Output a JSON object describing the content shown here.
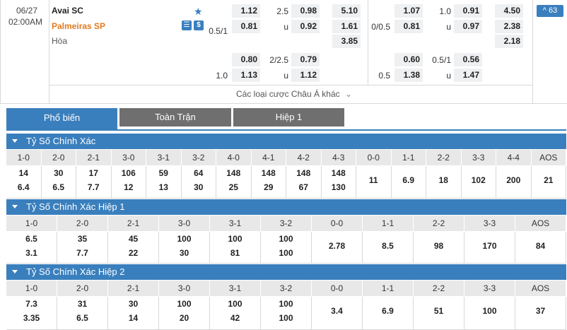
{
  "match": {
    "date": "06/27",
    "time": "02:00AM",
    "home": "Avai SC",
    "away": "Palmeiras SP",
    "draw": "Hòa",
    "more_count": "63",
    "more_label": "Các loại cược Châu Á khác",
    "home_color": "#222222",
    "away_color": "#e07b1f"
  },
  "odds": {
    "ft_hdp": [
      [
        "",
        "1.12"
      ],
      [
        "0.5/1",
        "0.81"
      ]
    ],
    "ft_ou": [
      [
        "2.5",
        "0.98"
      ],
      [
        "u",
        "0.92"
      ]
    ],
    "ft_1x2": [
      "5.10",
      "1.61",
      "3.85"
    ],
    "ht_hdp": [
      [
        "",
        "1.07"
      ],
      [
        "0/0.5",
        "0.81"
      ]
    ],
    "ht_ou": [
      [
        "1.0",
        "0.91"
      ],
      [
        "u",
        "0.97"
      ]
    ],
    "ht_1x2": [
      "4.50",
      "2.38",
      "2.18"
    ],
    "ft2_hdp": [
      [
        "",
        "0.80"
      ],
      [
        "1.0",
        "1.13"
      ]
    ],
    "ft2_ou": [
      [
        "2/2.5",
        "0.79"
      ],
      [
        "u",
        "1.12"
      ]
    ],
    "ht2_hdp": [
      [
        "",
        "0.60"
      ],
      [
        "0.5",
        "1.38"
      ]
    ],
    "ht2_ou": [
      [
        "0.5/1",
        "0.56"
      ],
      [
        "u",
        "1.47"
      ]
    ]
  },
  "tabs": [
    "Phổ biến",
    "Toàn Trận",
    "Hiệp 1"
  ],
  "sections": [
    {
      "title": "Tỷ Số Chính Xác",
      "headers": [
        "1-0",
        "2-0",
        "2-1",
        "3-0",
        "3-1",
        "3-2",
        "4-0",
        "4-1",
        "4-2",
        "4-3",
        "0-0",
        "1-1",
        "2-2",
        "3-3",
        "4-4",
        "AOS"
      ],
      "top": [
        "14",
        "30",
        "17",
        "106",
        "59",
        "64",
        "148",
        "148",
        "148",
        "148"
      ],
      "bottom": [
        "6.4",
        "6.5",
        "7.7",
        "12",
        "13",
        "30",
        "25",
        "29",
        "67",
        "130"
      ],
      "single": [
        "11",
        "6.9",
        "18",
        "102",
        "200",
        "21"
      ]
    },
    {
      "title": "Tỷ Số Chính Xác Hiệp 1",
      "headers": [
        "1-0",
        "2-0",
        "2-1",
        "3-0",
        "3-1",
        "3-2",
        "0-0",
        "1-1",
        "2-2",
        "3-3",
        "AOS"
      ],
      "top": [
        "6.5",
        "35",
        "45",
        "100",
        "100",
        "100"
      ],
      "bottom": [
        "3.1",
        "7.7",
        "22",
        "30",
        "81",
        "100"
      ],
      "single": [
        "2.78",
        "8.5",
        "98",
        "170",
        "84"
      ]
    },
    {
      "title": "Tỷ Số Chính Xác Hiệp 2",
      "headers": [
        "1-0",
        "2-0",
        "2-1",
        "3-0",
        "3-1",
        "3-2",
        "0-0",
        "1-1",
        "2-2",
        "3-3",
        "AOS"
      ],
      "top": [
        "7.3",
        "31",
        "30",
        "100",
        "100",
        "100"
      ],
      "bottom": [
        "3.35",
        "6.5",
        "14",
        "20",
        "42",
        "100"
      ],
      "single": [
        "3.4",
        "6.9",
        "51",
        "100",
        "37"
      ]
    }
  ]
}
